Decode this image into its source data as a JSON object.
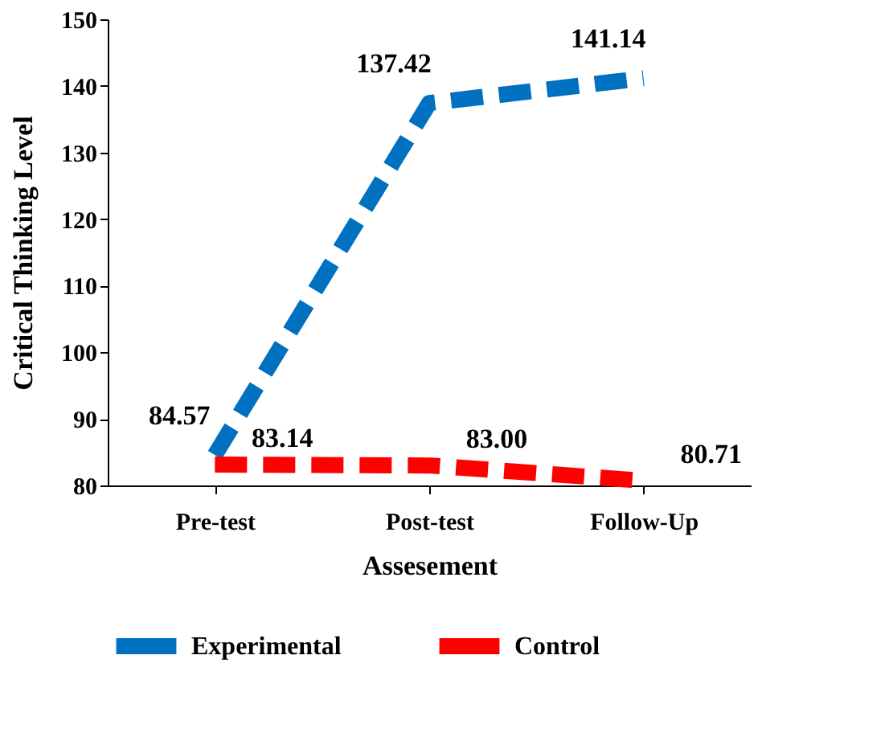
{
  "chart_data": {
    "type": "line",
    "xlabel": "Assesement",
    "ylabel": "Critical Thinking Level",
    "categories": [
      "Pre-test",
      "Post-test",
      "Follow-Up"
    ],
    "series": [
      {
        "name": "Experimental",
        "color": "#0070c0",
        "values": [
          84.57,
          137.42,
          141.14
        ],
        "value_labels": [
          "84.57",
          "137.42",
          "141.14"
        ]
      },
      {
        "name": "Control",
        "color": "#ff0000",
        "values": [
          83.14,
          83.0,
          80.71
        ],
        "value_labels": [
          "83.14",
          "83.00",
          "80.71"
        ]
      }
    ],
    "ylim": [
      80,
      150
    ],
    "yticks": [
      80,
      90,
      100,
      110,
      120,
      130,
      140,
      150
    ],
    "grid": false,
    "legend": "bottom",
    "line_style": "dashed",
    "marker": "none"
  }
}
